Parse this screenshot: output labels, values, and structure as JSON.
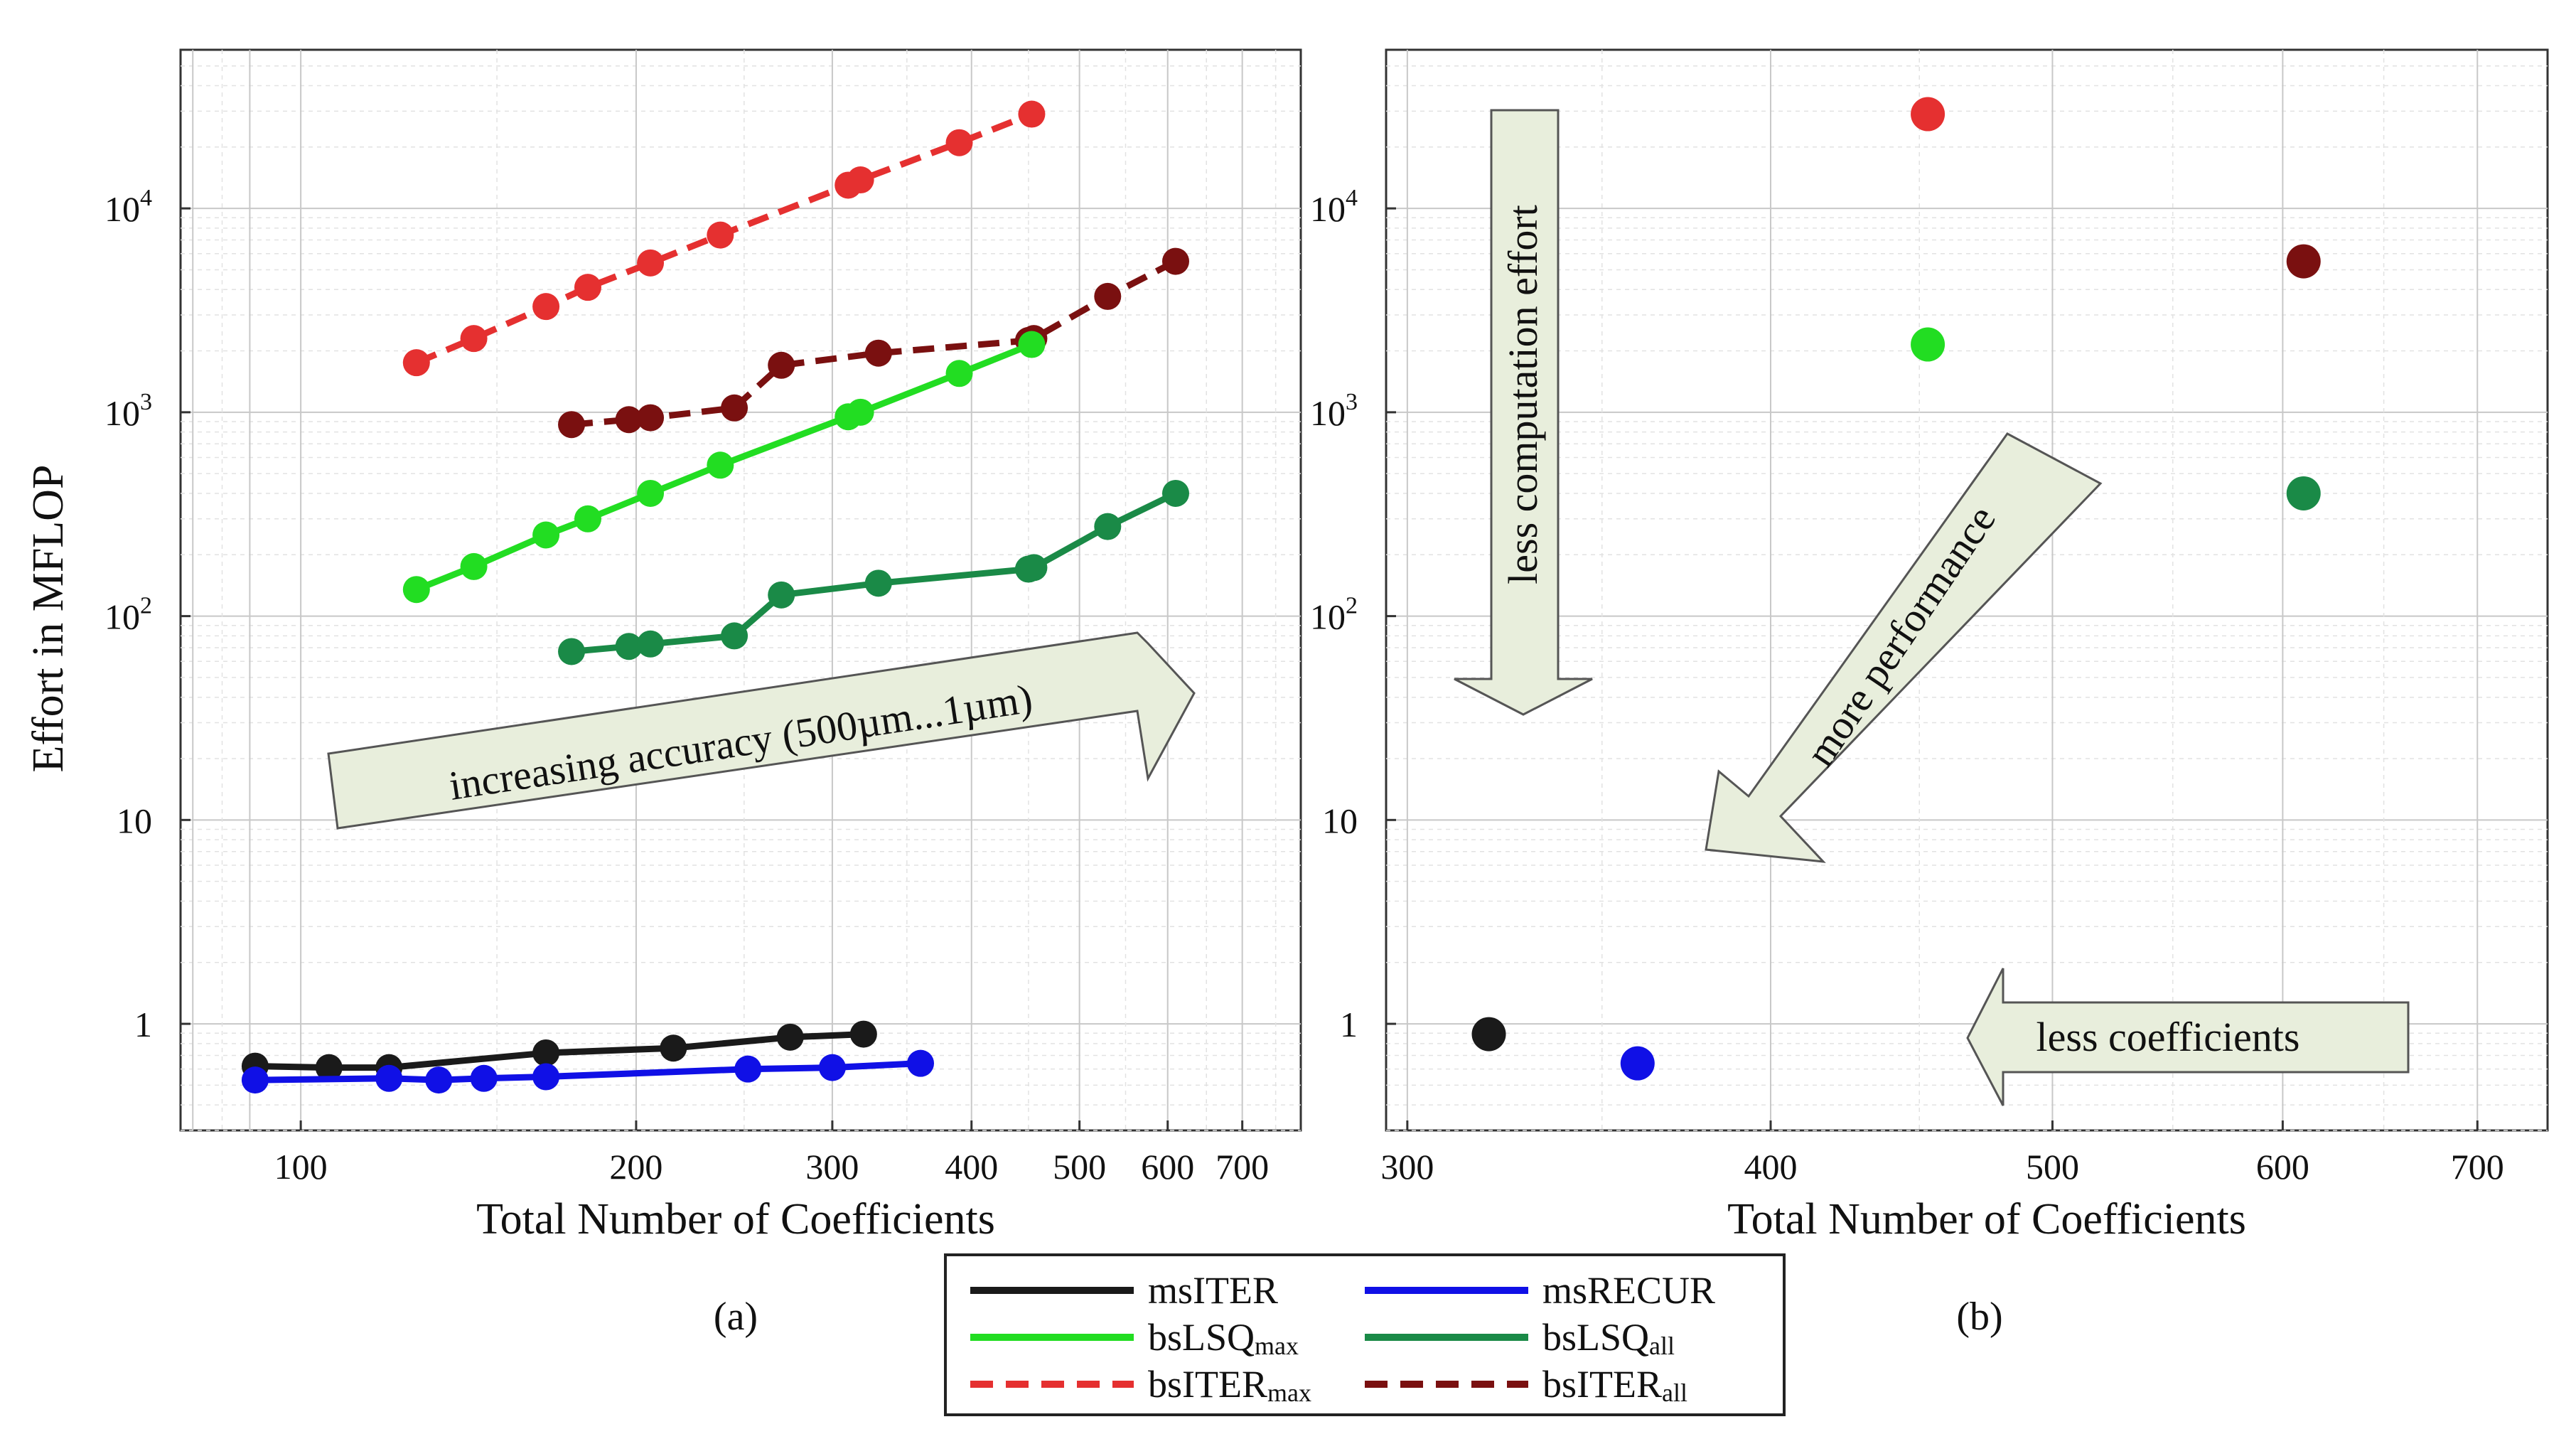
{
  "colors": {
    "msITER": "#1a1a1a",
    "msRECUR": "#1010e6",
    "bsLSQ_max": "#22dd22",
    "bsLSQ_all": "#1a8a47",
    "bsITER_max": "#e53030",
    "bsITER_all": "#7a1010",
    "arrow_fill": "#e8eedc",
    "arrow_stroke": "#555555",
    "grid_major": "#c8c8c8",
    "grid_minor": "#e2e2e2"
  },
  "chart_data": [
    {
      "type": "line",
      "panel": "(a)",
      "xlabel": "Total Number of Coefficients",
      "ylabel": "Effort in MFLOP",
      "xscale": "log",
      "yscale": "log",
      "xlim": [
        78,
        790
      ],
      "ylim": [
        0.3,
        60000
      ],
      "xticks": [
        {
          "value": 100,
          "label": "100"
        },
        {
          "value": 200,
          "label": "200"
        },
        {
          "value": 300,
          "label": "300"
        },
        {
          "value": 400,
          "label": "400"
        },
        {
          "value": 500,
          "label": "500"
        },
        {
          "value": 600,
          "label": "600"
        },
        {
          "value": 700,
          "label": "700"
        }
      ],
      "yticks": [
        {
          "value": 1,
          "base": "1",
          "exp": ""
        },
        {
          "value": 10,
          "base": "10",
          "exp": ""
        },
        {
          "value": 100,
          "base": "10",
          "exp": "2"
        },
        {
          "value": 1000,
          "base": "10",
          "exp": "3"
        },
        {
          "value": 10000,
          "base": "10",
          "exp": "4"
        }
      ],
      "series": [
        {
          "key": "bsITER_max",
          "dashed": true,
          "x": [
            127,
            143,
            166,
            181,
            206,
            238,
            310,
            318,
            390,
            453
          ],
          "y": [
            1750,
            2300,
            3300,
            4100,
            5400,
            7400,
            13000,
            13800,
            21000,
            29000
          ]
        },
        {
          "key": "bsITER_all",
          "dashed": true,
          "x": [
            175,
            197,
            206,
            245,
            270,
            330,
            450,
            455,
            530,
            610
          ],
          "y": [
            870,
            920,
            940,
            1050,
            1700,
            1950,
            2250,
            2300,
            3700,
            5500
          ]
        },
        {
          "key": "bsLSQ_max",
          "dashed": false,
          "x": [
            127,
            143,
            166,
            181,
            206,
            238,
            310,
            318,
            390,
            453
          ],
          "y": [
            135,
            175,
            250,
            300,
            400,
            550,
            950,
            1000,
            1550,
            2150
          ]
        },
        {
          "key": "bsLSQ_all",
          "dashed": false,
          "x": [
            175,
            197,
            206,
            245,
            270,
            330,
            450,
            455,
            530,
            610
          ],
          "y": [
            67,
            71,
            73,
            80,
            127,
            145,
            170,
            173,
            275,
            400
          ]
        },
        {
          "key": "msITER",
          "dashed": false,
          "x": [
            91,
            106,
            120,
            166,
            216,
            275,
            320
          ],
          "y": [
            0.62,
            0.61,
            0.61,
            0.72,
            0.76,
            0.86,
            0.89
          ]
        },
        {
          "key": "msRECUR",
          "dashed": false,
          "x": [
            91,
            120,
            133,
            146,
            166,
            252,
            300,
            360
          ],
          "y": [
            0.53,
            0.54,
            0.53,
            0.54,
            0.55,
            0.6,
            0.61,
            0.64
          ]
        }
      ],
      "annotations": [
        {
          "text": "increasing accuracy (500µm...1µm)"
        }
      ]
    },
    {
      "type": "scatter",
      "panel": "(b)",
      "xlabel": "Total Number of Coefficients",
      "xscale": "log",
      "yscale": "log",
      "xlim": [
        295,
        740
      ],
      "ylim": [
        0.3,
        60000
      ],
      "xticks": [
        {
          "value": 300,
          "label": "300"
        },
        {
          "value": 400,
          "label": "400"
        },
        {
          "value": 500,
          "label": "500"
        },
        {
          "value": 600,
          "label": "600"
        },
        {
          "value": 700,
          "label": "700"
        }
      ],
      "yticks": [
        {
          "value": 1,
          "base": "1",
          "exp": ""
        },
        {
          "value": 10,
          "base": "10",
          "exp": ""
        },
        {
          "value": 100,
          "base": "10",
          "exp": "2"
        },
        {
          "value": 1000,
          "base": "10",
          "exp": "3"
        },
        {
          "value": 10000,
          "base": "10",
          "exp": "4"
        }
      ],
      "points": [
        {
          "key": "bsITER_max",
          "x": 453,
          "y": 29000
        },
        {
          "key": "bsITER_all",
          "x": 610,
          "y": 5500
        },
        {
          "key": "bsLSQ_max",
          "x": 453,
          "y": 2150
        },
        {
          "key": "bsLSQ_all",
          "x": 610,
          "y": 400
        },
        {
          "key": "msITER",
          "x": 320,
          "y": 0.89
        },
        {
          "key": "msRECUR",
          "x": 360,
          "y": 0.64
        }
      ],
      "annotations": [
        {
          "text": "less computation effort"
        },
        {
          "text": "more performance"
        },
        {
          "text": "less coefficients"
        }
      ]
    }
  ],
  "legend": {
    "entries": [
      {
        "key": "msITER",
        "label": "msITER",
        "sub": "",
        "dashed": false
      },
      {
        "key": "msRECUR",
        "label": "msRECUR",
        "sub": "",
        "dashed": false
      },
      {
        "key": "bsLSQ_max",
        "label": "bsLSQ",
        "sub": "max",
        "dashed": false
      },
      {
        "key": "bsLSQ_all",
        "label": "bsLSQ",
        "sub": "all",
        "dashed": false
      },
      {
        "key": "bsITER_max",
        "label": "bsITER",
        "sub": "max",
        "dashed": true
      },
      {
        "key": "bsITER_all",
        "label": "bsITER",
        "sub": "all",
        "dashed": true
      }
    ]
  }
}
